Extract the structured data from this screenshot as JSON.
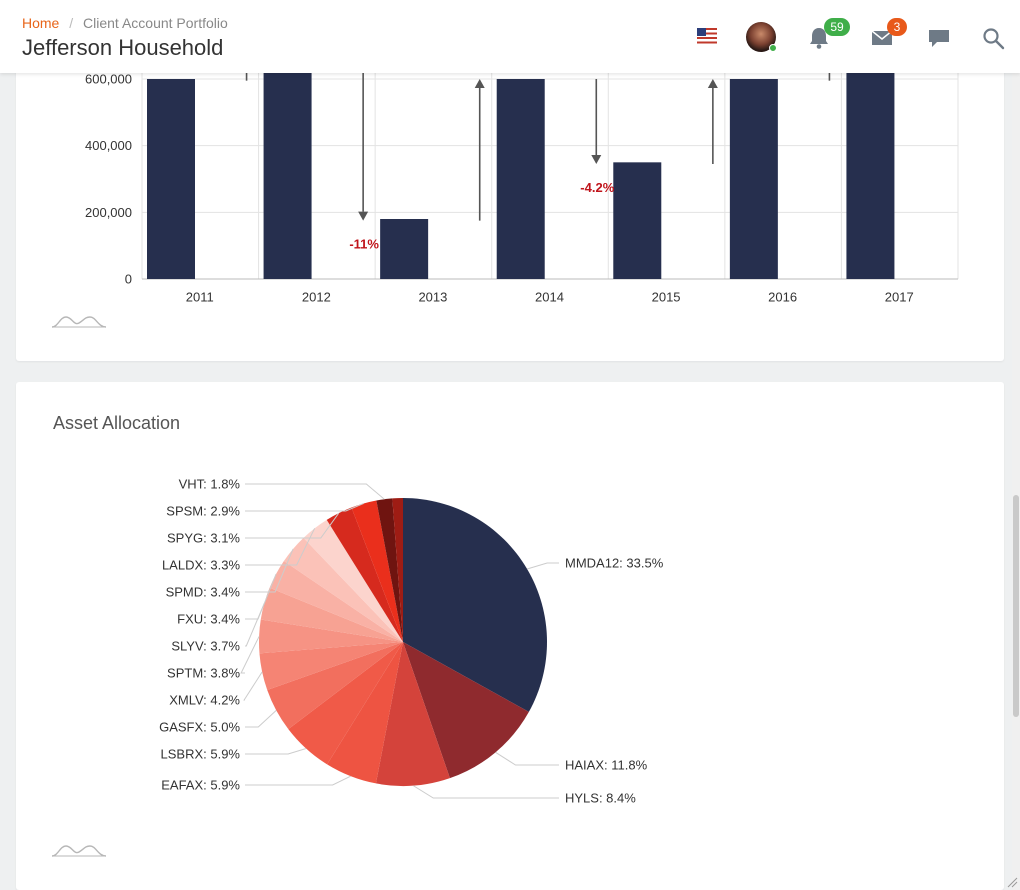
{
  "header": {
    "breadcrumb_home": "Home",
    "breadcrumb_sep": "/",
    "breadcrumb_current": "Client Account Portfolio",
    "title": "Jefferson Household",
    "notifications_count": "59",
    "messages_count": "3",
    "icons": [
      "us-flag-icon",
      "avatar",
      "bell-icon",
      "mail-icon",
      "chat-icon",
      "search-icon"
    ]
  },
  "waterfall": {
    "chart_data": {
      "type": "bar",
      "categories": [
        "2011",
        "2012",
        "2013",
        "2014",
        "2015",
        "2016",
        "2017"
      ],
      "values": [
        600000,
        650000,
        180000,
        600000,
        350000,
        600000,
        650000
      ],
      "ytick_labels": [
        "0",
        "200,000",
        "400,000",
        "600,000"
      ],
      "yticks": [
        0,
        200000,
        400000,
        600000
      ],
      "ylim": [
        0,
        650000
      ],
      "arrows": [
        {
          "x_index": 0,
          "from": 595000,
          "to": 650000,
          "label": ""
        },
        {
          "x_index": 1,
          "from": 650000,
          "to": 175000,
          "label": "-11%"
        },
        {
          "x_index": 2,
          "from": 175000,
          "to": 600000,
          "label": ""
        },
        {
          "x_index": 3,
          "from": 600000,
          "to": 345000,
          "label": "-4.2%"
        },
        {
          "x_index": 4,
          "from": 345000,
          "to": 600000,
          "label": ""
        },
        {
          "x_index": 5,
          "from": 595000,
          "to": 650000,
          "label": ""
        }
      ],
      "bar_color": "#262f4e",
      "negative_label_color": "#c0141b",
      "grid": true
    }
  },
  "allocation": {
    "title": "Asset Allocation",
    "chart_data": {
      "type": "pie",
      "slices": [
        {
          "label": "MMDA12",
          "value": 33.5,
          "text": "MMDA12: 33.5%",
          "color": "#262f4e"
        },
        {
          "label": "HAIAX",
          "value": 11.8,
          "text": "HAIAX: 11.8%",
          "color": "#8f2a2e"
        },
        {
          "label": "HYLS",
          "value": 8.4,
          "text": "HYLS: 8.4%",
          "color": "#d4433b"
        },
        {
          "label": "EAFAX",
          "value": 5.9,
          "text": "EAFAX: 5.9%",
          "color": "#ee5442"
        },
        {
          "label": "LSBRX",
          "value": 5.9,
          "text": "LSBRX: 5.9%",
          "color": "#f05a48"
        },
        {
          "label": "GASFX",
          "value": 5.0,
          "text": "GASFX: 5.0%",
          "color": "#f26f5e"
        },
        {
          "label": "XMLV",
          "value": 4.2,
          "text": "XMLV: 4.2%",
          "color": "#f58474"
        },
        {
          "label": "SPTM",
          "value": 3.8,
          "text": "SPTM: 3.8%",
          "color": "#f69384"
        },
        {
          "label": "SLYV",
          "value": 3.7,
          "text": "SLYV: 3.7%",
          "color": "#f7a293"
        },
        {
          "label": "FXU",
          "value": 3.4,
          "text": "FXU: 3.4%",
          "color": "#f9b1a5"
        },
        {
          "label": "SPMD",
          "value": 3.4,
          "text": "SPMD: 3.4%",
          "color": "#fbc2b8"
        },
        {
          "label": "LALDX",
          "value": 3.3,
          "text": "LALDX: 3.3%",
          "color": "#fcd4cd"
        },
        {
          "label": "SPYG",
          "value": 3.1,
          "text": "SPYG: 3.1%",
          "color": "#d62a1e"
        },
        {
          "label": "SPSM",
          "value": 2.9,
          "text": "SPSM: 2.9%",
          "color": "#ea2f1c"
        },
        {
          "label": "VHT",
          "value": 1.8,
          "text": "VHT: 1.8%",
          "color": "#6f1410"
        },
        {
          "label": "",
          "value": 1.2,
          "text": "",
          "color": "#9e1c14"
        }
      ]
    }
  }
}
